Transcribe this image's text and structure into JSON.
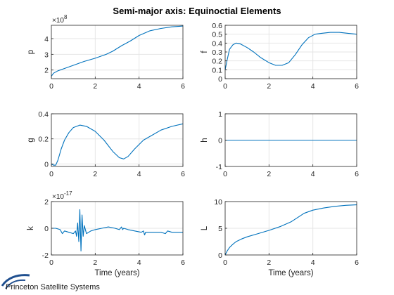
{
  "figure": {
    "title": "Semi-major axis: Equinoctial Elements",
    "series_color": "#0072BD",
    "logo_text": "Princeton Satellite Systems",
    "logo_color": "#1f4f8f"
  },
  "chart_data": [
    {
      "id": "p",
      "type": "line",
      "title": "",
      "xlabel": "",
      "ylabel": "p",
      "xlim": [
        0,
        6
      ],
      "ylim": [
        145000000.0,
        485000000.0
      ],
      "xticks": [
        0,
        2,
        4,
        6
      ],
      "yticks": [
        200000000.0,
        300000000.0,
        400000000.0
      ],
      "ytick_labels": [
        "2",
        "3",
        "4"
      ],
      "y_exponent": "8",
      "grid": true,
      "series": [
        {
          "x": [
            0,
            0.1,
            0.3,
            0.6,
            1,
            1.5,
            2,
            2.5,
            2.8,
            3.2,
            3.6,
            4,
            4.5,
            5,
            5.5,
            6
          ],
          "y": [
            160000000.0,
            180000000.0,
            195000000.0,
            210000000.0,
            230000000.0,
            255000000.0,
            275000000.0,
            300000000.0,
            320000000.0,
            355000000.0,
            385000000.0,
            420000000.0,
            450000000.0,
            465000000.0,
            475000000.0,
            480000000.0
          ]
        }
      ]
    },
    {
      "id": "f",
      "type": "line",
      "title": "",
      "xlabel": "",
      "ylabel": "f",
      "xlim": [
        0,
        6
      ],
      "ylim": [
        0,
        0.6
      ],
      "xticks": [
        0,
        2,
        4,
        6
      ],
      "yticks": [
        0,
        0.1,
        0.2,
        0.3,
        0.4,
        0.5,
        0.6
      ],
      "ytick_labels": [
        "0",
        "0.1",
        "0.2",
        "0.3",
        "0.4",
        "0.5",
        "0.6"
      ],
      "grid": true,
      "series": [
        {
          "x": [
            0,
            0.1,
            0.2,
            0.35,
            0.5,
            0.7,
            1,
            1.3,
            1.6,
            2,
            2.3,
            2.6,
            2.9,
            3.2,
            3.5,
            3.8,
            4.1,
            4.4,
            4.8,
            5.2,
            5.6,
            6
          ],
          "y": [
            0.1,
            0.22,
            0.33,
            0.38,
            0.4,
            0.39,
            0.35,
            0.3,
            0.24,
            0.18,
            0.15,
            0.15,
            0.18,
            0.27,
            0.38,
            0.46,
            0.5,
            0.51,
            0.52,
            0.52,
            0.51,
            0.5
          ]
        }
      ]
    },
    {
      "id": "g",
      "type": "line",
      "title": "",
      "xlabel": "",
      "ylabel": "g",
      "xlim": [
        0,
        6
      ],
      "ylim": [
        -0.02,
        0.4
      ],
      "xticks": [
        0,
        2,
        4,
        6
      ],
      "yticks": [
        0,
        0.2,
        0.4
      ],
      "ytick_labels": [
        "0",
        "0.2",
        "0.4"
      ],
      "grid": true,
      "series": [
        {
          "x": [
            0,
            0.1,
            0.2,
            0.3,
            0.45,
            0.6,
            0.8,
            1,
            1.3,
            1.6,
            2,
            2.4,
            2.8,
            3.1,
            3.3,
            3.5,
            3.8,
            4.2,
            4.6,
            5,
            5.5,
            6
          ],
          "y": [
            0.0,
            -0.01,
            -0.01,
            0.03,
            0.12,
            0.19,
            0.25,
            0.29,
            0.31,
            0.3,
            0.26,
            0.19,
            0.1,
            0.05,
            0.04,
            0.06,
            0.12,
            0.19,
            0.23,
            0.27,
            0.3,
            0.32
          ]
        }
      ]
    },
    {
      "id": "h",
      "type": "line",
      "title": "",
      "xlabel": "",
      "ylabel": "h",
      "xlim": [
        0,
        6
      ],
      "ylim": [
        -1,
        1
      ],
      "xticks": [
        0,
        2,
        4,
        6
      ],
      "yticks": [
        -1,
        0,
        1
      ],
      "ytick_labels": [
        "-1",
        "0",
        "1"
      ],
      "grid": true,
      "series": [
        {
          "x": [
            0,
            6
          ],
          "y": [
            0,
            0
          ]
        }
      ]
    },
    {
      "id": "k",
      "type": "line",
      "title": "",
      "xlabel": "Time (years)",
      "ylabel": "k",
      "xlim": [
        0,
        6
      ],
      "ylim": [
        -2e-17,
        2e-17
      ],
      "xticks": [
        0,
        2,
        4,
        6
      ],
      "yticks": [
        -2e-17,
        0,
        2e-17
      ],
      "ytick_labels": [
        "-2",
        "0",
        "2"
      ],
      "y_exponent": "-17",
      "grid": true,
      "series": [
        {
          "x": [
            0,
            0.2,
            0.4,
            0.5,
            0.6,
            0.8,
            1.0,
            1.1,
            1.15,
            1.2,
            1.25,
            1.3,
            1.35,
            1.4,
            1.45,
            1.5,
            1.6,
            1.8,
            2.0,
            2.3,
            2.6,
            2.9,
            3.1,
            3.2,
            3.25,
            3.3,
            3.5,
            3.8,
            4.1,
            4.2,
            4.25,
            4.3,
            4.6,
            5.0,
            5.2,
            5.3,
            5.5,
            6.0
          ],
          "y": [
            0,
            0,
            -1e-18,
            -4e-18,
            -2e-18,
            -3e-18,
            -4e-18,
            -2e-18,
            -6e-18,
            4e-18,
            -1e-17,
            1.4e-17,
            -1.7e-17,
            1e-17,
            -6e-18,
            2e-18,
            -4e-18,
            -2e-18,
            -1e-18,
            0.0,
            1e-18,
            0.0,
            -1e-18,
            1e-18,
            -1e-18,
            0.0,
            -1e-18,
            -2e-18,
            -3e-18,
            -2e-18,
            -5e-18,
            -3e-18,
            -3e-18,
            -3e-18,
            -4e-18,
            -2e-18,
            -3e-18,
            -3e-18
          ]
        }
      ]
    },
    {
      "id": "L",
      "type": "line",
      "title": "",
      "xlabel": "Time (years)",
      "ylabel": "L",
      "xlim": [
        0,
        6
      ],
      "ylim": [
        0,
        10
      ],
      "xticks": [
        0,
        2,
        4,
        6
      ],
      "yticks": [
        0,
        5,
        10
      ],
      "ytick_labels": [
        "0",
        "5",
        "10"
      ],
      "grid": true,
      "series": [
        {
          "x": [
            0,
            0.1,
            0.2,
            0.35,
            0.5,
            0.75,
            1,
            1.5,
            2,
            2.5,
            3,
            3.3,
            3.6,
            4,
            4.5,
            5,
            5.5,
            6
          ],
          "y": [
            0,
            0.8,
            1.4,
            2.0,
            2.5,
            3.0,
            3.4,
            4.0,
            4.6,
            5.3,
            6.2,
            7.0,
            7.8,
            8.4,
            8.8,
            9.1,
            9.3,
            9.4
          ]
        }
      ]
    }
  ]
}
